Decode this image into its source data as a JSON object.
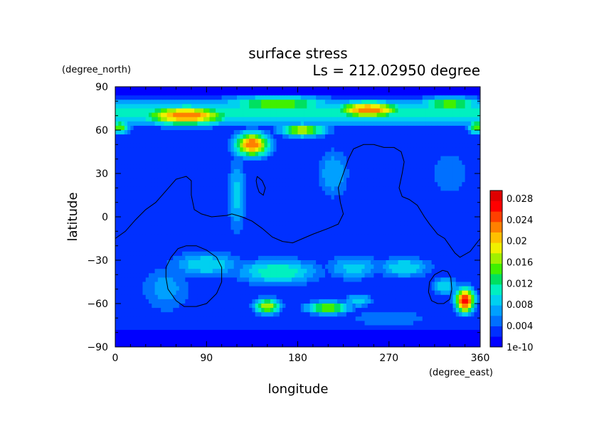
{
  "chart_data": {
    "type": "heatmap",
    "title": "surface stress",
    "subtitle": "Ls = 212.02950 degree",
    "xlabel": "longitude",
    "ylabel": "latitude",
    "xunit": "(degree_east)",
    "yunit": "(degree_north)",
    "xlim": [
      0,
      360
    ],
    "ylim": [
      -90,
      90
    ],
    "xticks": [
      0,
      90,
      180,
      270,
      360
    ],
    "yticks": [
      90,
      60,
      30,
      0,
      -30,
      -60,
      -90
    ],
    "colorbar": {
      "labels": [
        "0.028",
        "0.024",
        "0.02",
        "0.016",
        "0.012",
        "0.008",
        "0.004",
        "1e-10"
      ],
      "min": 1e-10,
      "max": 0.03,
      "colors": [
        "#0000ff",
        "#0030ff",
        "#0070ff",
        "#00a0ff",
        "#00d0f0",
        "#00f0c0",
        "#00e060",
        "#40f000",
        "#a0f000",
        "#f0f000",
        "#ffc000",
        "#ff8000",
        "#ff4000",
        "#ff0000",
        "#e00000"
      ]
    },
    "background_level": 0.002,
    "features": [
      {
        "kind": "band",
        "lat": 72,
        "lon_from": 0,
        "lon_to": 360,
        "width": 10,
        "peak": 0.012
      },
      {
        "kind": "blob",
        "lon": 70,
        "lat": 70,
        "rx": 45,
        "ry": 7,
        "peak": 0.024
      },
      {
        "kind": "blob",
        "lon": 250,
        "lat": 74,
        "rx": 35,
        "ry": 6,
        "peak": 0.024
      },
      {
        "kind": "blob",
        "lon": 160,
        "lat": 78,
        "rx": 60,
        "ry": 6,
        "peak": 0.016
      },
      {
        "kind": "blob",
        "lon": 330,
        "lat": 78,
        "rx": 35,
        "ry": 5,
        "peak": 0.016
      },
      {
        "kind": "blob",
        "lon": 5,
        "lat": 62,
        "rx": 10,
        "ry": 5,
        "peak": 0.016
      },
      {
        "kind": "blob",
        "lon": 357,
        "lat": 62,
        "rx": 10,
        "ry": 5,
        "peak": 0.016
      },
      {
        "kind": "blob",
        "lon": 135,
        "lat": 50,
        "rx": 18,
        "ry": 9,
        "peak": 0.024
      },
      {
        "kind": "blob",
        "lon": 185,
        "lat": 60,
        "rx": 25,
        "ry": 5,
        "peak": 0.018
      },
      {
        "kind": "blob",
        "lon": 120,
        "lat": 15,
        "rx": 10,
        "ry": 30,
        "peak": 0.009
      },
      {
        "kind": "blob",
        "lon": 215,
        "lat": 30,
        "rx": 18,
        "ry": 20,
        "peak": 0.008
      },
      {
        "kind": "blob",
        "lon": 330,
        "lat": 30,
        "rx": 25,
        "ry": 20,
        "peak": 0.006
      },
      {
        "kind": "blob",
        "lon": 90,
        "lat": -33,
        "rx": 40,
        "ry": 10,
        "peak": 0.01
      },
      {
        "kind": "blob",
        "lon": 160,
        "lat": -38,
        "rx": 45,
        "ry": 10,
        "peak": 0.012
      },
      {
        "kind": "blob",
        "lon": 235,
        "lat": -35,
        "rx": 30,
        "ry": 10,
        "peak": 0.009
      },
      {
        "kind": "blob",
        "lon": 285,
        "lat": -35,
        "rx": 30,
        "ry": 8,
        "peak": 0.01
      },
      {
        "kind": "blob",
        "lon": 150,
        "lat": -62,
        "rx": 14,
        "ry": 6,
        "peak": 0.018
      },
      {
        "kind": "blob",
        "lon": 210,
        "lat": -63,
        "rx": 25,
        "ry": 5,
        "peak": 0.016
      },
      {
        "kind": "blob",
        "lon": 240,
        "lat": -58,
        "rx": 15,
        "ry": 5,
        "peak": 0.01
      },
      {
        "kind": "blob",
        "lon": 345,
        "lat": -58,
        "rx": 10,
        "ry": 9,
        "peak": 0.028
      },
      {
        "kind": "blob",
        "lon": 325,
        "lat": -48,
        "rx": 15,
        "ry": 7,
        "peak": 0.01
      },
      {
        "kind": "blob",
        "lon": 50,
        "lat": -50,
        "rx": 30,
        "ry": 20,
        "peak": 0.007
      },
      {
        "kind": "blob",
        "lon": 270,
        "lat": -70,
        "rx": 50,
        "ry": 8,
        "peak": 0.006
      }
    ],
    "outlines": [
      [
        [
          0,
          -15
        ],
        [
          10,
          -10
        ],
        [
          20,
          -2
        ],
        [
          30,
          5
        ],
        [
          40,
          10
        ],
        [
          50,
          18
        ],
        [
          60,
          26
        ],
        [
          70,
          28
        ],
        [
          75,
          25
        ],
        [
          75,
          15
        ],
        [
          78,
          5
        ],
        [
          85,
          2
        ],
        [
          95,
          0
        ],
        [
          110,
          1
        ],
        [
          115,
          2
        ],
        [
          125,
          0
        ],
        [
          135,
          -3
        ],
        [
          145,
          -8
        ],
        [
          155,
          -14
        ],
        [
          165,
          -17
        ],
        [
          175,
          -18
        ],
        [
          185,
          -15
        ],
        [
          195,
          -12
        ],
        [
          210,
          -8
        ],
        [
          220,
          -5
        ],
        [
          225,
          2
        ],
        [
          222,
          10
        ],
        [
          220,
          20
        ],
        [
          225,
          30
        ],
        [
          230,
          40
        ],
        [
          235,
          47
        ],
        [
          245,
          50
        ],
        [
          255,
          50
        ],
        [
          265,
          48
        ],
        [
          275,
          48
        ],
        [
          282,
          45
        ],
        [
          285,
          38
        ],
        [
          283,
          30
        ],
        [
          280,
          20
        ],
        [
          283,
          14
        ],
        [
          290,
          12
        ],
        [
          298,
          8
        ],
        [
          305,
          0
        ],
        [
          310,
          -5
        ],
        [
          318,
          -12
        ],
        [
          325,
          -15
        ],
        [
          330,
          -20
        ],
        [
          335,
          -25
        ],
        [
          340,
          -28
        ],
        [
          350,
          -24
        ],
        [
          360,
          -15
        ]
      ],
      [
        [
          140,
          28
        ],
        [
          145,
          25
        ],
        [
          148,
          20
        ],
        [
          146,
          15
        ],
        [
          142,
          17
        ],
        [
          140,
          21
        ],
        [
          139,
          25
        ],
        [
          140,
          28
        ]
      ],
      [
        [
          70,
          -20
        ],
        [
          80,
          -20
        ],
        [
          90,
          -23
        ],
        [
          100,
          -28
        ],
        [
          105,
          -35
        ],
        [
          105,
          -45
        ],
        [
          100,
          -53
        ],
        [
          90,
          -60
        ],
        [
          80,
          -62
        ],
        [
          68,
          -62
        ],
        [
          60,
          -58
        ],
        [
          52,
          -50
        ],
        [
          50,
          -42
        ],
        [
          50,
          -35
        ],
        [
          55,
          -28
        ],
        [
          62,
          -22
        ],
        [
          70,
          -20
        ]
      ],
      [
        [
          323,
          -37
        ],
        [
          328,
          -38
        ],
        [
          331,
          -42
        ],
        [
          332,
          -50
        ],
        [
          330,
          -57
        ],
        [
          324,
          -60
        ],
        [
          318,
          -60
        ],
        [
          312,
          -58
        ],
        [
          309,
          -52
        ],
        [
          310,
          -45
        ],
        [
          315,
          -40
        ],
        [
          323,
          -37
        ]
      ]
    ]
  }
}
